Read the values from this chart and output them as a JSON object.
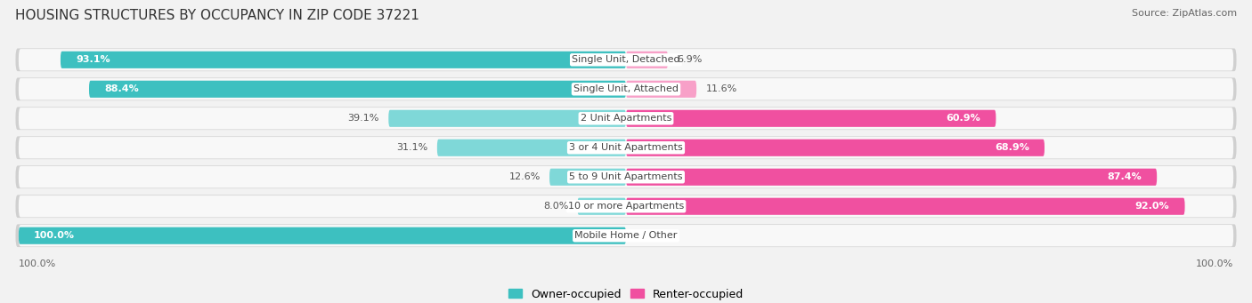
{
  "title": "HOUSING STRUCTURES BY OCCUPANCY IN ZIP CODE 37221",
  "source": "Source: ZipAtlas.com",
  "categories": [
    "Single Unit, Detached",
    "Single Unit, Attached",
    "2 Unit Apartments",
    "3 or 4 Unit Apartments",
    "5 to 9 Unit Apartments",
    "10 or more Apartments",
    "Mobile Home / Other"
  ],
  "owner_pct": [
    93.1,
    88.4,
    39.1,
    31.1,
    12.6,
    8.0,
    100.0
  ],
  "renter_pct": [
    6.9,
    11.6,
    60.9,
    68.9,
    87.4,
    92.0,
    0.0
  ],
  "owner_color_strong": "#3DC0C0",
  "owner_color_light": "#7FD8D8",
  "renter_color_strong": "#F050A0",
  "renter_color_light": "#F8A0C8",
  "row_bg_color": "#EBEBEB",
  "row_inner_color": "#F8F8F8",
  "bg_color": "#F2F2F2",
  "title_fontsize": 11,
  "source_fontsize": 8,
  "label_fontsize": 8,
  "pct_fontsize": 8,
  "legend_fontsize": 9,
  "bar_height": 0.58,
  "owner_threshold": 50,
  "renter_threshold": 50
}
